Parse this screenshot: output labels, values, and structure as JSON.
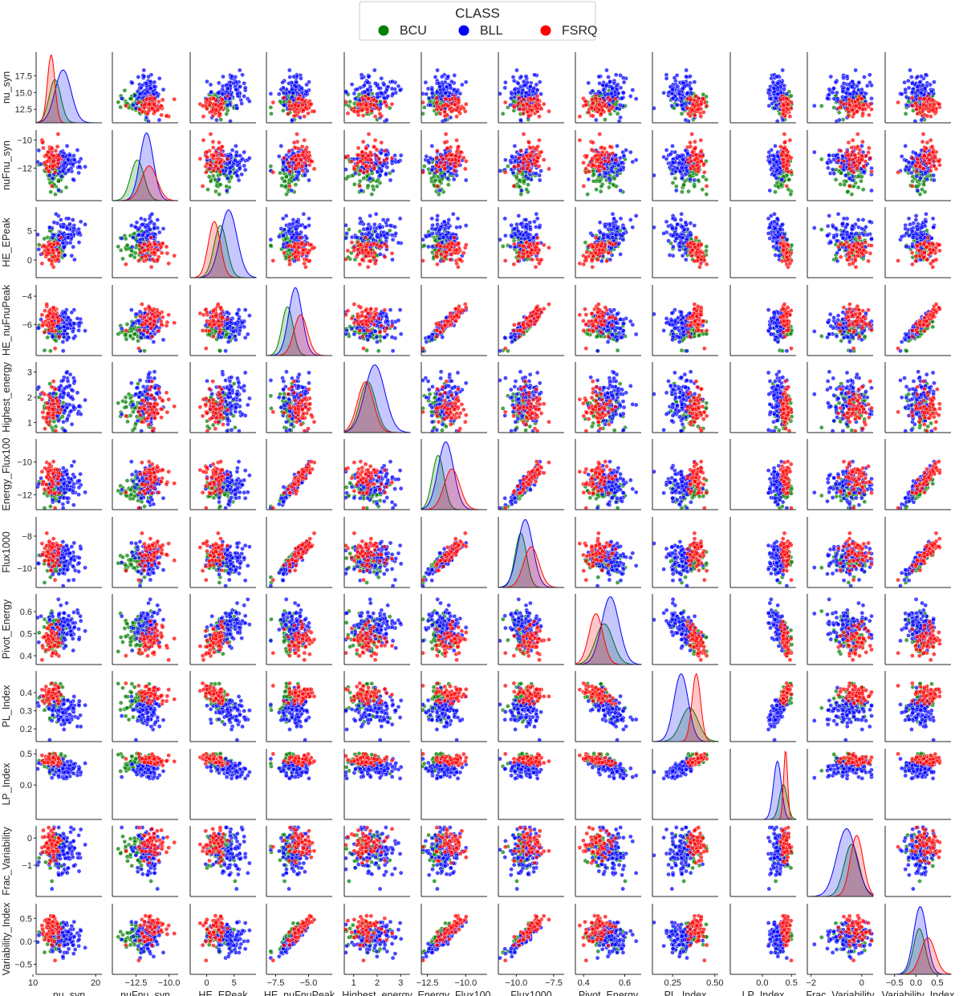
{
  "chart_data": {
    "type": "scatter",
    "legend": {
      "title": "CLASS",
      "placement": "top-center",
      "entries": [
        {
          "name": "BCU",
          "color": "#008000"
        },
        {
          "name": "BLL",
          "color": "#0000ff"
        },
        {
          "name": "FSRQ",
          "color": "#ff0000"
        }
      ]
    },
    "variables": [
      "nu_syn",
      "nuFnu_syn",
      "HE_EPeak",
      "HE_nuFnuPeak",
      "Highest_energy",
      "Energy_Flux100",
      "Flux1000",
      "Pivot_Energy",
      "PL_Index",
      "LP_Index",
      "Frac_Variability",
      "Variability_Index"
    ],
    "axis_ranges": {
      "nu_syn": [
        10.5,
        21
      ],
      "nuFnu_syn": [
        -14.3,
        -9.3
      ],
      "HE_EPeak": [
        -3,
        9
      ],
      "HE_nuFnuPeak": [
        -8.2,
        -3.2
      ],
      "Highest_energy": [
        0.6,
        3.4
      ],
      "Energy_Flux100": [
        -12.9,
        -8.6
      ],
      "Flux1000": [
        -11.2,
        -6.8
      ],
      "Pivot_Energy": [
        0.36,
        0.68
      ],
      "PL_Index": [
        0.13,
        0.52
      ],
      "LP_Index": [
        -0.55,
        0.58
      ],
      "Frac_Variability": [
        -2.15,
        0.45
      ],
      "Variability_Index": [
        -0.72,
        0.82
      ]
    },
    "x_ticks": [
      [
        "10",
        "20"
      ],
      [
        "−12.5",
        "−10.0"
      ],
      [
        "0",
        "5"
      ],
      [
        "−7.5",
        "−5.0"
      ],
      [
        "1",
        "2",
        "3"
      ],
      [
        "−12.5",
        "−10.0"
      ],
      [
        "−10.0",
        "−7.5"
      ],
      [
        "0.4",
        "0.6"
      ],
      [
        "0.25",
        "0.50"
      ],
      [
        "0.0",
        "0.5"
      ],
      [
        "−2",
        "0"
      ],
      [
        "−0.5",
        "0.0",
        "0.5"
      ]
    ],
    "y_ticks": [
      [
        "12.5",
        "15.0",
        "17.5"
      ],
      [
        "−12",
        "−10"
      ],
      [
        "0",
        "5"
      ],
      [
        "−6",
        "−4"
      ],
      [
        "1",
        "2",
        "3"
      ],
      [
        "−12",
        "−10"
      ],
      [
        "−10",
        "−8"
      ],
      [
        "0.4",
        "0.5",
        "0.6"
      ],
      [
        "0.2",
        "0.3",
        "0.4"
      ],
      [
        "0.0",
        "0.5"
      ],
      [
        "−1",
        "0"
      ],
      [
        "−0.5",
        "0.0",
        "0.5"
      ]
    ],
    "grid": false,
    "diagonal": "kde",
    "points_per_class_estimate": {
      "BCU": 60,
      "BLL": 100,
      "FSRQ": 60
    }
  }
}
